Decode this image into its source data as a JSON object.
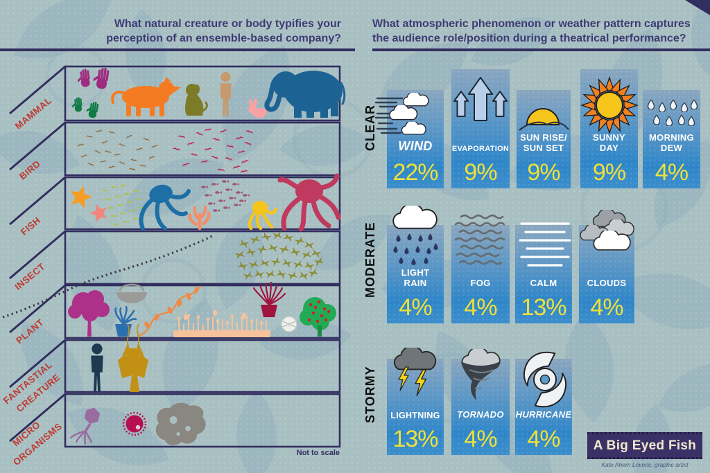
{
  "left_panel": {
    "title": "What natural creature or body typifies your\nperception of an ensemble-based company?",
    "note": "Not to scale",
    "rows": [
      {
        "label_lines": [
          "MAMMAL"
        ],
        "items": [
          "handprint-purple-icon",
          "handprint-green-icon",
          "tiger-icon",
          "dog-icon",
          "human-icon",
          "rabbit-icon",
          "elephant-icon"
        ]
      },
      {
        "label_lines": [
          "BIRD"
        ],
        "items": [
          "brown-bird-flock-icon",
          "crimson-bird-flock-icon"
        ]
      },
      {
        "label_lines": [
          "FISH"
        ],
        "items": [
          "orange-starfish-icon",
          "pink-starfish-icon",
          "green-fish-school-icon",
          "blue-octopus-icon",
          "coral-icon",
          "purple-fish-school-icon",
          "yellow-octopus-icon",
          "crimson-octopus-icon"
        ]
      },
      {
        "label_lines": [
          "INSECT"
        ],
        "items": [
          "ant-trail-icon",
          "moth-swarm-icon"
        ]
      },
      {
        "label_lines": [
          "PLANT"
        ],
        "items": [
          "magenta-tree-icon",
          "nest-icon",
          "blue-potted-plant-icon",
          "orange-vine-icon",
          "meadow-icon",
          "red-potted-plant-icon",
          "globe-stamp-icon",
          "apple-tree-icon"
        ]
      },
      {
        "label_lines": [
          "FANTASTIAL",
          "CREATURE"
        ],
        "items": [
          "person-silhouette-icon",
          "fantasy-creature-icon"
        ]
      },
      {
        "label_lines": [
          "MICRO",
          "ORGANISMS"
        ],
        "items": [
          "bacteriophage-icon",
          "virus-icon",
          "amoeba-icon"
        ]
      }
    ]
  },
  "right_panel": {
    "title": "What atmospheric phenomenon or weather pattern captures\nthe audience role/position during a theatrical performance?",
    "groups": [
      {
        "label": "CLEAR",
        "cards": [
          {
            "icon": "wind-icon",
            "label": "WIND",
            "value": "22%"
          },
          {
            "icon": "evaporation-icon",
            "label": "EVAPORATION",
            "value": "9%"
          },
          {
            "icon": "sunrise-icon",
            "label": "SUN RISE/\nSUN SET",
            "value": "9%"
          },
          {
            "icon": "sun-icon",
            "label": "SUNNY\nDAY",
            "value": "9%"
          },
          {
            "icon": "dew-icon",
            "label": "MORNING\nDEW",
            "value": "4%"
          }
        ]
      },
      {
        "label": "MODERATE",
        "cards": [
          {
            "icon": "rain-cloud-icon",
            "label": "LIGHT\nRAIN",
            "value": "4%"
          },
          {
            "icon": "fog-icon",
            "label": "FOG",
            "value": "4%"
          },
          {
            "icon": "calm-icon",
            "label": "CALM",
            "value": "13%"
          },
          {
            "icon": "clouds-icon",
            "label": "CLOUDS",
            "value": "4%"
          }
        ]
      },
      {
        "label": "STORMY",
        "cards": [
          {
            "icon": "lightning-icon",
            "label": "LIGHTNING",
            "value": "13%"
          },
          {
            "icon": "tornado-icon",
            "label": "TORNADO",
            "value": "4%"
          },
          {
            "icon": "hurricane-icon",
            "label": "HURRICANE",
            "value": "4%"
          }
        ]
      }
    ]
  },
  "footer": {
    "brand": "A Big Eyed Fish",
    "credit": "Kate Ahern Loveric, graphic artist"
  },
  "colors": {
    "background": "#a9c0c3",
    "navy": "#322e5f",
    "title_text": "#3f3a73",
    "category_red": "#bf3a31",
    "card_top": "#8aa6bf",
    "card_bottom": "#2e86c8",
    "percent_yellow": "#efe13a",
    "card_label_white": "#ffffff",
    "brand_bg": "#3a3166",
    "brand_text": "#f2e8cf"
  },
  "chart_data": [
    {
      "type": "table",
      "title": "What natural creature or body typifies your perception of an ensemble-based company?",
      "categories": [
        "MAMMAL",
        "BIRD",
        "FISH",
        "INSECT",
        "PLANT",
        "FANTASTIAL CREATURE",
        "MICRO ORGANISMS"
      ],
      "rows": [
        {
          "category": "MAMMAL",
          "items": [
            "handprints",
            "tiger",
            "dog",
            "human",
            "rabbit",
            "elephant"
          ]
        },
        {
          "category": "BIRD",
          "items": [
            "brown bird flock",
            "crimson bird flock"
          ]
        },
        {
          "category": "FISH",
          "items": [
            "starfish",
            "fish schools",
            "octopuses",
            "coral"
          ]
        },
        {
          "category": "INSECT",
          "items": [
            "ant trail",
            "moth swarm"
          ]
        },
        {
          "category": "PLANT",
          "items": [
            "trees",
            "nest",
            "potted plants",
            "vine",
            "meadow"
          ]
        },
        {
          "category": "FANTASTIAL CREATURE",
          "items": [
            "human silhouette",
            "fantasy creature"
          ]
        },
        {
          "category": "MICRO ORGANISMS",
          "items": [
            "bacteriophage",
            "virus",
            "amoeba"
          ]
        }
      ],
      "note": "Not to scale"
    },
    {
      "type": "bar",
      "title": "What atmospheric phenomenon or weather pattern captures the audience role/position during a theatrical performance?",
      "unit": "%",
      "series": [
        {
          "name": "CLEAR",
          "categories": [
            "WIND",
            "EVAPORATION",
            "SUN RISE/SUN SET",
            "SUNNY DAY",
            "MORNING DEW"
          ],
          "values": [
            22,
            9,
            9,
            9,
            4
          ]
        },
        {
          "name": "MODERATE",
          "categories": [
            "LIGHT RAIN",
            "FOG",
            "CALM",
            "CLOUDS"
          ],
          "values": [
            4,
            4,
            13,
            4
          ]
        },
        {
          "name": "STORMY",
          "categories": [
            "LIGHTNING",
            "TORNADO",
            "HURRICANE"
          ],
          "values": [
            13,
            4,
            4
          ]
        }
      ]
    }
  ]
}
